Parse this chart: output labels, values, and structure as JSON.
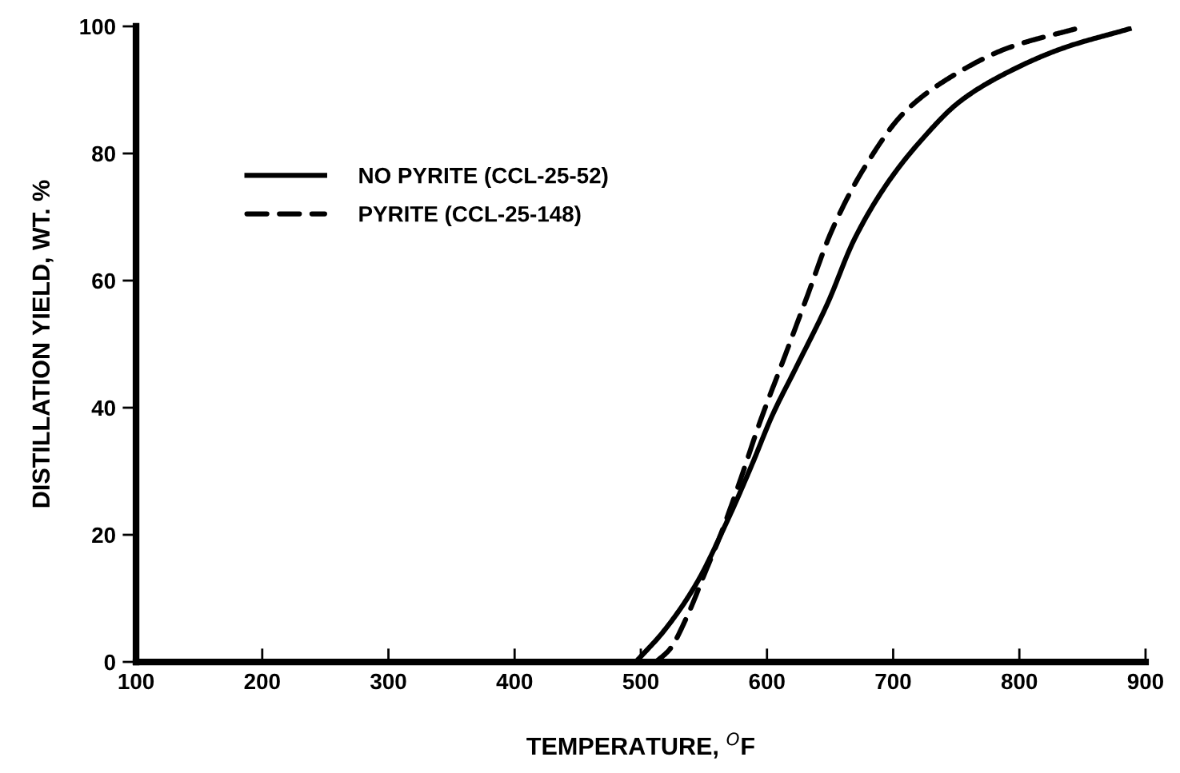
{
  "chart_data": {
    "type": "line",
    "xlabel": "TEMPERATURE, $^{O}$F",
    "ylabel": "DISTILLATION YIELD, WT. %",
    "xlim": [
      100,
      900
    ],
    "xticks": [
      100,
      200,
      300,
      400,
      500,
      600,
      700,
      800,
      900
    ],
    "ylim": [
      0,
      100
    ],
    "yticks": [
      0,
      20,
      40,
      60,
      80,
      100
    ],
    "grid": false,
    "legend": "top left",
    "series": [
      {
        "name": "NO PYRITE (CCL-25-52)",
        "color": "#000000",
        "line_style": "solid",
        "x": [
          496,
          518,
          544,
          569,
          588,
          604,
          623,
          648,
          669,
          695,
          721,
          753,
          791,
          835,
          887
        ],
        "values": [
          0,
          4.8,
          12.3,
          22.4,
          31,
          38.7,
          46.3,
          56.4,
          66.4,
          75.2,
          81.8,
          88.2,
          92.8,
          96.6,
          99.6
        ]
      },
      {
        "name": "PYRITE (CCL-25-148)",
        "color": "#000000",
        "line_style": "dashed",
        "x": [
          512,
          523,
          537,
          550,
          563,
          579,
          594,
          613,
          632,
          651,
          677,
          709,
          747,
          791,
          848
        ],
        "values": [
          0,
          2,
          7.3,
          13.6,
          19.9,
          28.7,
          37.5,
          47.5,
          57.6,
          67.7,
          77.7,
          86.5,
          92.2,
          96.6,
          99.8
        ]
      }
    ]
  }
}
